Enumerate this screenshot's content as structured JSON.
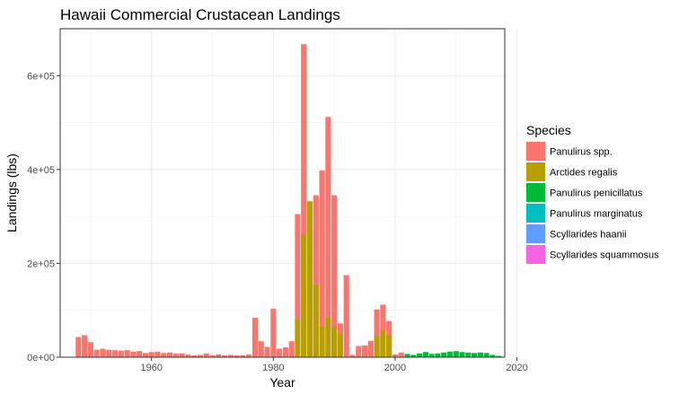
{
  "chart_data": {
    "type": "bar",
    "stacked": true,
    "title": "Hawaii Commercial Crustacean Landings",
    "xlabel": "Year",
    "ylabel": "Landings (lbs)",
    "xlim": [
      1945,
      2018
    ],
    "ylim": [
      0,
      700000
    ],
    "x_ticks": [
      1960,
      1980,
      2000,
      2020
    ],
    "y_ticks": [
      0,
      200000,
      400000,
      600000
    ],
    "y_tick_labels": [
      "0e+00",
      "2e+05",
      "4e+05",
      "6e+05"
    ],
    "grid": true,
    "legend": {
      "title": "Species",
      "position": "right",
      "entries": [
        {
          "name": "Panulirus spp.",
          "color": "#F8766D"
        },
        {
          "name": "Arctides regalis",
          "color": "#B79F00"
        },
        {
          "name": "Panulirus penicillatus",
          "color": "#00BA38"
        },
        {
          "name": "Panulirus marginatus",
          "color": "#00BFC4"
        },
        {
          "name": "Scyllarides haanii",
          "color": "#619CFF"
        },
        {
          "name": "Scyllarides squammosus",
          "color": "#F564E3"
        }
      ]
    },
    "series": [
      {
        "name": "Panulirus spp.",
        "color": "#F8766D",
        "years": [
          1948,
          1949,
          1950,
          1951,
          1952,
          1953,
          1954,
          1955,
          1956,
          1957,
          1958,
          1959,
          1960,
          1961,
          1962,
          1963,
          1964,
          1965,
          1966,
          1967,
          1968,
          1969,
          1970,
          1971,
          1972,
          1973,
          1974,
          1975,
          1976,
          1977,
          1978,
          1979,
          1980,
          1981,
          1982,
          1983,
          1984,
          1985,
          1986,
          1987,
          1988,
          1989,
          1990,
          1991,
          1992,
          1993,
          1994,
          1995,
          1996,
          1997,
          1998,
          1999,
          2000,
          2001
        ],
        "values": [
          43000,
          47000,
          32000,
          16000,
          18000,
          16000,
          15000,
          14000,
          15000,
          12000,
          13000,
          9000,
          11000,
          12000,
          9000,
          10000,
          8000,
          8000,
          6000,
          4000,
          5000,
          8000,
          4000,
          6000,
          4000,
          5000,
          4000,
          4000,
          6000,
          84000,
          34000,
          22000,
          103000,
          18000,
          21000,
          34000,
          305000,
          667000,
          332000,
          345000,
          398000,
          512000,
          345000,
          72000,
          175000,
          5000,
          24000,
          25000,
          35000,
          102000,
          112000,
          77000,
          6000,
          10000
        ]
      },
      {
        "name": "Arctides regalis",
        "color": "#B79F00",
        "years": [
          1984,
          1985,
          1986,
          1987,
          1988,
          1989,
          1990,
          1991,
          1997,
          1998,
          1999
        ],
        "values": [
          80000,
          262000,
          332000,
          155000,
          65000,
          84000,
          63000,
          50000,
          45000,
          57000,
          47000
        ]
      },
      {
        "name": "Panulirus penicillatus",
        "color": "#00BA38",
        "years": [
          2002,
          2003,
          2004,
          2005,
          2006,
          2007,
          2008,
          2009,
          2010,
          2011,
          2012,
          2013,
          2014,
          2015,
          2016,
          2017
        ],
        "values": [
          7000,
          5000,
          8000,
          11000,
          7000,
          8000,
          10000,
          12000,
          13000,
          11000,
          10000,
          9000,
          10000,
          9000,
          5000,
          3000
        ]
      },
      {
        "name": "Panulirus marginatus",
        "color": "#00BFC4",
        "years": [],
        "values": []
      },
      {
        "name": "Scyllarides haanii",
        "color": "#619CFF",
        "years": [],
        "values": []
      },
      {
        "name": "Scyllarides squammosus",
        "color": "#F564E3",
        "years": [],
        "values": []
      }
    ]
  }
}
